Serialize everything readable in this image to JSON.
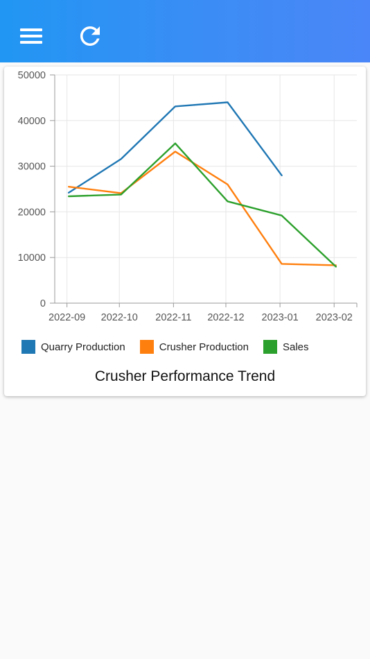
{
  "app_bar": {
    "menu_icon": "hamburger-menu-icon",
    "refresh_icon": "refresh-icon",
    "background": "#2196f3"
  },
  "chart_data": {
    "type": "line",
    "title": "Crusher Performance Trend",
    "xlabel": "",
    "ylabel": "",
    "categories": [
      "2022-09",
      "2022-10",
      "2022-11",
      "2022-12",
      "2023-01",
      "2023-02"
    ],
    "ylim": [
      0,
      50000
    ],
    "yticks": [
      0,
      10000,
      20000,
      30000,
      40000,
      50000
    ],
    "grid": true,
    "legend_position": "bottom",
    "series": [
      {
        "name": "Quarry Production",
        "color": "#1f77b4",
        "points": [
          {
            "x": "2022-09-02",
            "y": 24200
          },
          {
            "x": "2022-10-02",
            "y": 31600
          },
          {
            "x": "2022-11-02",
            "y": 43100
          },
          {
            "x": "2022-12-02",
            "y": 44000
          },
          {
            "x": "2023-01-02",
            "y": 28000
          }
        ]
      },
      {
        "name": "Crusher Production",
        "color": "#ff7f0e",
        "points": [
          {
            "x": "2022-09-02",
            "y": 25500
          },
          {
            "x": "2022-10-02",
            "y": 24100
          },
          {
            "x": "2022-11-02",
            "y": 33200
          },
          {
            "x": "2022-12-02",
            "y": 26000
          },
          {
            "x": "2023-01-02",
            "y": 8600
          },
          {
            "x": "2023-02-02",
            "y": 8300
          }
        ]
      },
      {
        "name": "Sales",
        "color": "#2ca02c",
        "points": [
          {
            "x": "2022-09-02",
            "y": 23400
          },
          {
            "x": "2022-10-02",
            "y": 23800
          },
          {
            "x": "2022-11-02",
            "y": 35000
          },
          {
            "x": "2022-12-02",
            "y": 22300
          },
          {
            "x": "2023-01-02",
            "y": 19200
          },
          {
            "x": "2023-02-02",
            "y": 8000
          }
        ]
      }
    ]
  }
}
